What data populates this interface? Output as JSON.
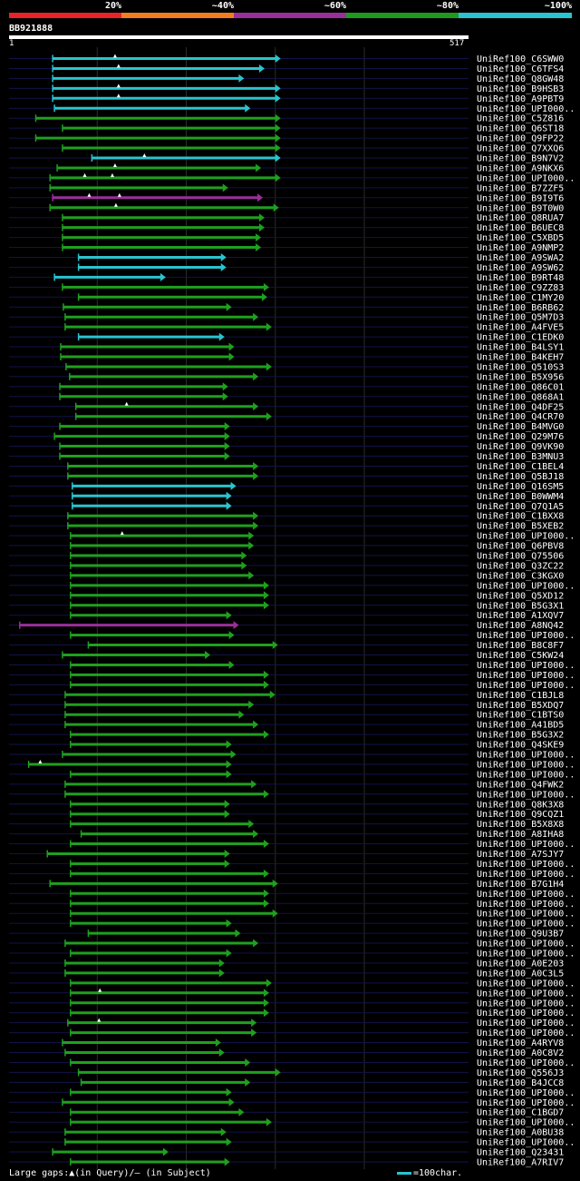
{
  "query": {
    "name": "BB921888",
    "start_label": "1",
    "end_label": "517",
    "length": 517
  },
  "legend": {
    "items": [
      {
        "label": "20%",
        "color": "#e8232a"
      },
      {
        "label": "~40%",
        "color": "#f07d1e"
      },
      {
        "label": "~60%",
        "color": "#9b2f9a"
      },
      {
        "label": "~80%",
        "color": "#1e9a1e"
      },
      {
        "label": "~100%",
        "color": "#29c4cf"
      }
    ]
  },
  "footer": {
    "gaps_text": "Large gaps:▲(in Query)/– (in Subject)",
    "scale_text": "=100char."
  },
  "chart_data": {
    "type": "alignment-overview",
    "title": "BB921888",
    "x_range": [
      1,
      517
    ],
    "gridlines_at": [
      100,
      200,
      300,
      400
    ],
    "color_legend": [
      "20%",
      "~40%",
      "~60%",
      "~80%",
      "~100%"
    ],
    "hits": [
      {
        "name": "UniRef100_C6SWW0",
        "start": 50,
        "end": 305,
        "color": "cyan",
        "query_gaps": [
          120
        ]
      },
      {
        "name": "UniRef100_C6TFS4",
        "start": 50,
        "end": 287,
        "color": "cyan",
        "query_gaps": [
          124
        ]
      },
      {
        "name": "UniRef100_Q8GW48",
        "start": 50,
        "end": 264,
        "color": "cyan",
        "query_gaps": []
      },
      {
        "name": "UniRef100_B9HSB3",
        "start": 50,
        "end": 305,
        "color": "cyan",
        "query_gaps": [
          124
        ]
      },
      {
        "name": "UniRef100_A9PBT9",
        "start": 50,
        "end": 305,
        "color": "cyan",
        "query_gaps": [
          124
        ]
      },
      {
        "name": "UniRef100_UPI000..",
        "start": 52,
        "end": 271,
        "color": "cyan",
        "query_gaps": []
      },
      {
        "name": "UniRef100_C5Z816",
        "start": 31,
        "end": 305,
        "color": "green",
        "query_gaps": []
      },
      {
        "name": "UniRef100_Q6ST18",
        "start": 61,
        "end": 305,
        "color": "green",
        "query_gaps": []
      },
      {
        "name": "UniRef100_Q9FP22",
        "start": 31,
        "end": 305,
        "color": "green",
        "query_gaps": []
      },
      {
        "name": "UniRef100_Q7XXQ6",
        "start": 61,
        "end": 305,
        "color": "green",
        "query_gaps": []
      },
      {
        "name": "UniRef100_B9N7V2",
        "start": 94,
        "end": 305,
        "color": "cyan",
        "query_gaps": [
          153
        ]
      },
      {
        "name": "UniRef100_A9NKX6",
        "start": 55,
        "end": 283,
        "color": "green",
        "query_gaps": [
          120
        ]
      },
      {
        "name": "UniRef100_UPI000..",
        "start": 47,
        "end": 305,
        "color": "green",
        "query_gaps": [
          86,
          117
        ]
      },
      {
        "name": "UniRef100_B7ZZF5",
        "start": 47,
        "end": 246,
        "color": "green",
        "query_gaps": []
      },
      {
        "name": "UniRef100_B9I9T6",
        "start": 50,
        "end": 285,
        "color": "magenta",
        "query_gaps": [
          91,
          125
        ]
      },
      {
        "name": "UniRef100_B9T0W0",
        "start": 47,
        "end": 303,
        "color": "green",
        "query_gaps": [
          121
        ]
      },
      {
        "name": "UniRef100_Q8RUA7",
        "start": 61,
        "end": 287,
        "color": "green",
        "query_gaps": []
      },
      {
        "name": "UniRef100_B6UEC8",
        "start": 61,
        "end": 287,
        "color": "green",
        "query_gaps": []
      },
      {
        "name": "UniRef100_C5XBD5",
        "start": 61,
        "end": 283,
        "color": "green",
        "query_gaps": []
      },
      {
        "name": "UniRef100_A9NMP2",
        "start": 61,
        "end": 283,
        "color": "green",
        "query_gaps": []
      },
      {
        "name": "UniRef100_A9SWA2",
        "start": 79,
        "end": 244,
        "color": "cyan",
        "query_gaps": []
      },
      {
        "name": "UniRef100_A9SW62",
        "start": 79,
        "end": 244,
        "color": "cyan",
        "query_gaps": []
      },
      {
        "name": "UniRef100_B9RT48",
        "start": 52,
        "end": 176,
        "color": "cyan",
        "query_gaps": []
      },
      {
        "name": "UniRef100_C9ZZ83",
        "start": 61,
        "end": 292,
        "color": "green",
        "query_gaps": []
      },
      {
        "name": "UniRef100_C1MY20",
        "start": 79,
        "end": 290,
        "color": "green",
        "query_gaps": []
      },
      {
        "name": "UniRef100_B6RB62",
        "start": 62,
        "end": 250,
        "color": "green",
        "query_gaps": []
      },
      {
        "name": "UniRef100_Q5M7D3",
        "start": 64,
        "end": 280,
        "color": "green",
        "query_gaps": []
      },
      {
        "name": "UniRef100_A4FVE5",
        "start": 64,
        "end": 295,
        "color": "green",
        "query_gaps": []
      },
      {
        "name": "UniRef100_C1EDK0",
        "start": 79,
        "end": 242,
        "color": "cyan",
        "query_gaps": []
      },
      {
        "name": "UniRef100_B4LSY1",
        "start": 59,
        "end": 253,
        "color": "green",
        "query_gaps": []
      },
      {
        "name": "UniRef100_B4KEH7",
        "start": 59,
        "end": 253,
        "color": "green",
        "query_gaps": []
      },
      {
        "name": "UniRef100_Q510S3",
        "start": 65,
        "end": 295,
        "color": "green",
        "query_gaps": []
      },
      {
        "name": "UniRef100_B5X956",
        "start": 69,
        "end": 280,
        "color": "green",
        "query_gaps": []
      },
      {
        "name": "UniRef100_Q86C01",
        "start": 58,
        "end": 246,
        "color": "green",
        "query_gaps": []
      },
      {
        "name": "UniRef100_Q868A1",
        "start": 58,
        "end": 246,
        "color": "green",
        "query_gaps": []
      },
      {
        "name": "UniRef100_Q4DF25",
        "start": 76,
        "end": 280,
        "color": "green",
        "query_gaps": [
          133
        ]
      },
      {
        "name": "UniRef100_Q4CR70",
        "start": 76,
        "end": 295,
        "color": "green",
        "query_gaps": []
      },
      {
        "name": "UniRef100_B4MVG0",
        "start": 58,
        "end": 248,
        "color": "green",
        "query_gaps": []
      },
      {
        "name": "UniRef100_Q29M76",
        "start": 52,
        "end": 248,
        "color": "green",
        "query_gaps": []
      },
      {
        "name": "UniRef100_Q9VK90",
        "start": 58,
        "end": 248,
        "color": "green",
        "query_gaps": []
      },
      {
        "name": "UniRef100_B3MNU3",
        "start": 58,
        "end": 248,
        "color": "green",
        "query_gaps": []
      },
      {
        "name": "UniRef100_C1BEL4",
        "start": 67,
        "end": 280,
        "color": "green",
        "query_gaps": []
      },
      {
        "name": "UniRef100_Q5BJ18",
        "start": 67,
        "end": 280,
        "color": "green",
        "query_gaps": []
      },
      {
        "name": "UniRef100_Q16SM5",
        "start": 72,
        "end": 255,
        "color": "cyan",
        "query_gaps": []
      },
      {
        "name": "UniRef100_B0WWM4",
        "start": 72,
        "end": 250,
        "color": "cyan",
        "query_gaps": []
      },
      {
        "name": "UniRef100_Q7Q1A5",
        "start": 72,
        "end": 250,
        "color": "cyan",
        "query_gaps": []
      },
      {
        "name": "UniRef100_C1BXX8",
        "start": 67,
        "end": 280,
        "color": "green",
        "query_gaps": []
      },
      {
        "name": "UniRef100_B5XEB2",
        "start": 67,
        "end": 280,
        "color": "green",
        "query_gaps": []
      },
      {
        "name": "UniRef100_UPI000..",
        "start": 70,
        "end": 275,
        "color": "green",
        "query_gaps": [
          128
        ]
      },
      {
        "name": "UniRef100_Q6PBV8",
        "start": 70,
        "end": 275,
        "color": "green",
        "query_gaps": []
      },
      {
        "name": "UniRef100_Q75506",
        "start": 70,
        "end": 267,
        "color": "green",
        "query_gaps": []
      },
      {
        "name": "UniRef100_Q3ZC22",
        "start": 70,
        "end": 267,
        "color": "green",
        "query_gaps": []
      },
      {
        "name": "UniRef100_C3KGX0",
        "start": 70,
        "end": 275,
        "color": "green",
        "query_gaps": []
      },
      {
        "name": "UniRef100_UPI000..",
        "start": 70,
        "end": 292,
        "color": "green",
        "query_gaps": []
      },
      {
        "name": "UniRef100_Q5XD12",
        "start": 70,
        "end": 292,
        "color": "green",
        "query_gaps": []
      },
      {
        "name": "UniRef100_B5G3X1",
        "start": 70,
        "end": 292,
        "color": "green",
        "query_gaps": []
      },
      {
        "name": "UniRef100_A1XQV7",
        "start": 70,
        "end": 250,
        "color": "green",
        "query_gaps": []
      },
      {
        "name": "UniRef100_A8NQ42",
        "start": 13,
        "end": 258,
        "color": "magenta",
        "query_gaps": []
      },
      {
        "name": "UniRef100_UPI000..",
        "start": 70,
        "end": 253,
        "color": "green",
        "query_gaps": []
      },
      {
        "name": "UniRef100_B8C8F7",
        "start": 90,
        "end": 302,
        "color": "green",
        "query_gaps": []
      },
      {
        "name": "UniRef100_C5KW24",
        "start": 61,
        "end": 226,
        "color": "green",
        "query_gaps": []
      },
      {
        "name": "UniRef100_UPI000..",
        "start": 70,
        "end": 253,
        "color": "green",
        "query_gaps": []
      },
      {
        "name": "UniRef100_UPI000..",
        "start": 70,
        "end": 292,
        "color": "green",
        "query_gaps": []
      },
      {
        "name": "UniRef100_UPI000..",
        "start": 70,
        "end": 292,
        "color": "green",
        "query_gaps": []
      },
      {
        "name": "UniRef100_C1BJL8",
        "start": 64,
        "end": 299,
        "color": "green",
        "query_gaps": []
      },
      {
        "name": "UniRef100_B5XDQ7",
        "start": 64,
        "end": 275,
        "color": "green",
        "query_gaps": []
      },
      {
        "name": "UniRef100_C1BTS0",
        "start": 64,
        "end": 264,
        "color": "green",
        "query_gaps": []
      },
      {
        "name": "UniRef100_A41BD5",
        "start": 64,
        "end": 280,
        "color": "green",
        "query_gaps": []
      },
      {
        "name": "UniRef100_B5G3X2",
        "start": 70,
        "end": 292,
        "color": "green",
        "query_gaps": []
      },
      {
        "name": "UniRef100_Q4SKE9",
        "start": 70,
        "end": 250,
        "color": "green",
        "query_gaps": []
      },
      {
        "name": "UniRef100_UPI000..",
        "start": 61,
        "end": 255,
        "color": "green",
        "query_gaps": []
      },
      {
        "name": "UniRef100_UPI000..",
        "start": 23,
        "end": 250,
        "color": "green",
        "query_gaps": [
          36
        ]
      },
      {
        "name": "UniRef100_UPI000..",
        "start": 70,
        "end": 250,
        "color": "green",
        "query_gaps": []
      },
      {
        "name": "UniRef100_Q4FWK2",
        "start": 64,
        "end": 278,
        "color": "green",
        "query_gaps": []
      },
      {
        "name": "UniRef100_UPI000..",
        "start": 64,
        "end": 292,
        "color": "green",
        "query_gaps": []
      },
      {
        "name": "UniRef100_Q8K3X8",
        "start": 70,
        "end": 248,
        "color": "green",
        "query_gaps": []
      },
      {
        "name": "UniRef100_Q9CQZ1",
        "start": 70,
        "end": 248,
        "color": "green",
        "query_gaps": []
      },
      {
        "name": "UniRef100_B5X8X8",
        "start": 70,
        "end": 275,
        "color": "green",
        "query_gaps": []
      },
      {
        "name": "UniRef100_A8IHA8",
        "start": 82,
        "end": 280,
        "color": "green",
        "query_gaps": []
      },
      {
        "name": "UniRef100_UPI000..",
        "start": 70,
        "end": 292,
        "color": "green",
        "query_gaps": []
      },
      {
        "name": "UniRef100_A7SJY7",
        "start": 44,
        "end": 248,
        "color": "green",
        "query_gaps": []
      },
      {
        "name": "UniRef100_UPI000..",
        "start": 70,
        "end": 248,
        "color": "green",
        "query_gaps": []
      },
      {
        "name": "UniRef100_UPI000..",
        "start": 70,
        "end": 292,
        "color": "green",
        "query_gaps": []
      },
      {
        "name": "UniRef100_B7G1H4",
        "start": 47,
        "end": 302,
        "color": "green",
        "query_gaps": []
      },
      {
        "name": "UniRef100_UPI000..",
        "start": 70,
        "end": 292,
        "color": "green",
        "query_gaps": []
      },
      {
        "name": "UniRef100_UPI000..",
        "start": 70,
        "end": 292,
        "color": "green",
        "query_gaps": []
      },
      {
        "name": "UniRef100_UPI000..",
        "start": 70,
        "end": 302,
        "color": "green",
        "query_gaps": []
      },
      {
        "name": "UniRef100_UPI000..",
        "start": 70,
        "end": 250,
        "color": "green",
        "query_gaps": []
      },
      {
        "name": "UniRef100_Q9U3B7",
        "start": 90,
        "end": 260,
        "color": "green",
        "query_gaps": []
      },
      {
        "name": "UniRef100_UPI000..",
        "start": 64,
        "end": 280,
        "color": "green",
        "query_gaps": []
      },
      {
        "name": "UniRef100_UPI000..",
        "start": 70,
        "end": 250,
        "color": "green",
        "query_gaps": []
      },
      {
        "name": "UniRef100_A0E203",
        "start": 64,
        "end": 242,
        "color": "green",
        "query_gaps": []
      },
      {
        "name": "UniRef100_A0C3L5",
        "start": 64,
        "end": 242,
        "color": "green",
        "query_gaps": []
      },
      {
        "name": "UniRef100_UPI000..",
        "start": 70,
        "end": 295,
        "color": "green",
        "query_gaps": []
      },
      {
        "name": "UniRef100_UPI000..",
        "start": 70,
        "end": 292,
        "color": "green",
        "query_gaps": [
          103
        ]
      },
      {
        "name": "UniRef100_UPI000..",
        "start": 70,
        "end": 292,
        "color": "green",
        "query_gaps": []
      },
      {
        "name": "UniRef100_UPI000..",
        "start": 70,
        "end": 292,
        "color": "green",
        "query_gaps": []
      },
      {
        "name": "UniRef100_UPI000..",
        "start": 67,
        "end": 278,
        "color": "green",
        "query_gaps": [
          102
        ]
      },
      {
        "name": "UniRef100_UPI000..",
        "start": 70,
        "end": 278,
        "color": "green",
        "query_gaps": []
      },
      {
        "name": "UniRef100_A4RYV8",
        "start": 61,
        "end": 238,
        "color": "green",
        "query_gaps": []
      },
      {
        "name": "UniRef100_A0C8V2",
        "start": 64,
        "end": 242,
        "color": "green",
        "query_gaps": []
      },
      {
        "name": "UniRef100_UPI000..",
        "start": 70,
        "end": 271,
        "color": "green",
        "query_gaps": []
      },
      {
        "name": "UniRef100_Q556J3",
        "start": 79,
        "end": 305,
        "color": "green",
        "query_gaps": []
      },
      {
        "name": "UniRef100_B4JCC8",
        "start": 82,
        "end": 271,
        "color": "green",
        "query_gaps": []
      },
      {
        "name": "UniRef100_UPI000..",
        "start": 70,
        "end": 250,
        "color": "green",
        "query_gaps": []
      },
      {
        "name": "UniRef100_UPI000..",
        "start": 61,
        "end": 253,
        "color": "green",
        "query_gaps": []
      },
      {
        "name": "UniRef100_C1BGD7",
        "start": 70,
        "end": 264,
        "color": "green",
        "query_gaps": []
      },
      {
        "name": "UniRef100_UPI000..",
        "start": 70,
        "end": 295,
        "color": "green",
        "query_gaps": []
      },
      {
        "name": "UniRef100_A0BU38",
        "start": 64,
        "end": 244,
        "color": "green",
        "query_gaps": []
      },
      {
        "name": "UniRef100_UPI000..",
        "start": 64,
        "end": 250,
        "color": "green",
        "query_gaps": []
      },
      {
        "name": "UniRef100_Q23431",
        "start": 50,
        "end": 179,
        "color": "green",
        "query_gaps": []
      },
      {
        "name": "UniRef100_A7RIV7",
        "start": 70,
        "end": 248,
        "color": "green",
        "query_gaps": []
      }
    ]
  }
}
